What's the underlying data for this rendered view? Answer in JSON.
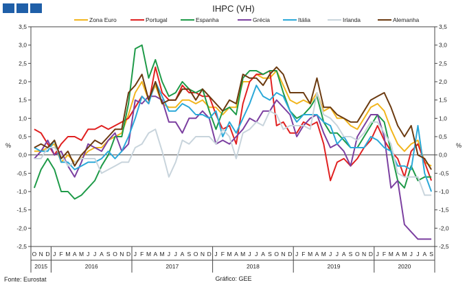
{
  "source_text": "Fonte: Eurostat",
  "credit_text": "Gráfico: GEE",
  "chart_data": {
    "type": "line",
    "title": "IHPC (VH)",
    "ylabel_left": "%",
    "ylabel_right": "%",
    "ylim": [
      -2.5,
      3.5
    ],
    "yticks": [
      "-2,5",
      "-2,0",
      "-1,5",
      "-1,0",
      "-0,5",
      "0,0",
      "0,5",
      "1,0",
      "1,5",
      "2,0",
      "2,5",
      "3,0",
      "3,5"
    ],
    "yvalues": [
      -2.5,
      -2.0,
      -1.5,
      -1.0,
      -0.5,
      0.0,
      0.5,
      1.0,
      1.5,
      2.0,
      2.5,
      3.0,
      3.5
    ],
    "month_labels": [
      "O",
      "N",
      "D",
      "J",
      "F",
      "M",
      "A",
      "M",
      "J",
      "J",
      "A",
      "S",
      "O",
      "N",
      "D",
      "J",
      "F",
      "M",
      "A",
      "M",
      "J",
      "J",
      "A",
      "S",
      "O",
      "N",
      "D",
      "J",
      "F",
      "M",
      "A",
      "M",
      "J",
      "J",
      "A",
      "S",
      "O",
      "N",
      "D",
      "J",
      "F",
      "M",
      "A",
      "M",
      "J",
      "J",
      "A",
      "S",
      "O",
      "N",
      "D",
      "J",
      "F",
      "M",
      "A",
      "M",
      "J",
      "J",
      "A",
      "S"
    ],
    "years": [
      {
        "label": "2015",
        "start": 0,
        "end": 2
      },
      {
        "label": "2016",
        "start": 3,
        "end": 14
      },
      {
        "label": "2017",
        "start": 15,
        "end": 26
      },
      {
        "label": "2018",
        "start": 27,
        "end": 38
      },
      {
        "label": "2019",
        "start": 39,
        "end": 50
      },
      {
        "label": "2020",
        "start": 51,
        "end": 59
      }
    ],
    "legend_position": "top",
    "series": [
      {
        "name": "Zona Euro",
        "color": "#f2b51c",
        "values": [
          0.1,
          0.1,
          0.2,
          0.3,
          -0.2,
          0.0,
          -0.2,
          -0.1,
          0.1,
          0.2,
          0.2,
          0.4,
          0.5,
          0.6,
          1.1,
          1.7,
          2.0,
          1.5,
          1.9,
          1.4,
          1.3,
          1.3,
          1.5,
          1.5,
          1.4,
          1.5,
          1.3,
          1.3,
          1.1,
          1.3,
          1.3,
          2.0,
          2.0,
          2.2,
          2.1,
          2.1,
          2.3,
          1.9,
          1.5,
          1.4,
          1.5,
          1.4,
          1.7,
          1.2,
          1.3,
          1.0,
          1.0,
          0.8,
          0.7,
          1.0,
          1.3,
          1.4,
          1.2,
          0.7,
          0.3,
          0.1,
          0.3,
          0.4,
          -0.2,
          -0.3
        ]
      },
      {
        "name": "Portugal",
        "color": "#e02020",
        "values": [
          0.7,
          0.6,
          0.3,
          0.0,
          0.3,
          0.5,
          0.5,
          0.4,
          0.7,
          0.7,
          0.8,
          0.7,
          0.8,
          0.9,
          1.0,
          1.3,
          1.6,
          1.4,
          2.4,
          1.7,
          1.5,
          1.5,
          1.9,
          1.7,
          1.7,
          1.6,
          1.6,
          1.1,
          0.7,
          0.8,
          0.3,
          1.4,
          2.0,
          2.2,
          2.2,
          2.3,
          0.8,
          0.9,
          0.6,
          0.6,
          0.9,
          0.8,
          0.9,
          0.3,
          -0.7,
          -0.2,
          -0.1,
          -0.3,
          -0.1,
          0.2,
          0.4,
          0.8,
          0.4,
          0.1,
          -0.1,
          -0.6,
          0.1,
          0.3,
          -0.2,
          -0.7
        ]
      },
      {
        "name": "Espanha",
        "color": "#1e9a48",
        "values": [
          -0.9,
          -0.4,
          -0.1,
          -0.4,
          -1.0,
          -1.0,
          -1.2,
          -1.1,
          -0.9,
          -0.7,
          -0.3,
          0.0,
          0.5,
          0.5,
          1.4,
          2.9,
          3.0,
          2.1,
          2.6,
          2.0,
          1.6,
          1.7,
          2.0,
          1.8,
          1.7,
          1.8,
          1.2,
          0.7,
          1.2,
          1.3,
          1.1,
          2.1,
          2.3,
          2.3,
          2.2,
          2.3,
          2.3,
          1.7,
          1.2,
          1.0,
          1.1,
          1.3,
          1.6,
          0.9,
          0.6,
          0.6,
          0.4,
          0.2,
          0.2,
          0.5,
          0.8,
          1.1,
          0.9,
          0.1,
          -0.7,
          -0.9,
          -0.3,
          -0.7,
          -0.6,
          -0.6
        ]
      },
      {
        "name": "Grécia",
        "color": "#7b3fa0",
        "values": [
          -0.1,
          0.1,
          0.4,
          0.0,
          0.1,
          -0.3,
          -0.6,
          -0.2,
          0.3,
          0.2,
          0.1,
          0.4,
          0.6,
          0.1,
          0.3,
          1.5,
          1.4,
          1.6,
          1.6,
          1.5,
          0.9,
          0.9,
          0.6,
          1.0,
          1.0,
          1.2,
          1.0,
          0.3,
          0.4,
          0.3,
          0.5,
          0.7,
          1.0,
          0.9,
          1.2,
          1.2,
          1.5,
          1.3,
          1.1,
          0.5,
          0.8,
          1.0,
          1.1,
          0.6,
          0.2,
          0.3,
          0.1,
          -0.3,
          0.5,
          0.8,
          1.1,
          1.1,
          0.5,
          -0.9,
          -0.7,
          -1.9,
          -2.1,
          -2.3,
          -2.3,
          -2.3
        ]
      },
      {
        "name": "Itália",
        "color": "#2aa8d8",
        "values": [
          0.2,
          0.1,
          0.1,
          0.4,
          -0.2,
          -0.2,
          -0.4,
          -0.3,
          -0.2,
          -0.2,
          -0.1,
          0.1,
          -0.1,
          0.1,
          0.5,
          1.0,
          1.6,
          1.4,
          2.0,
          1.6,
          1.2,
          1.2,
          1.4,
          1.3,
          1.1,
          1.1,
          1.0,
          1.2,
          0.5,
          0.9,
          0.6,
          1.0,
          1.4,
          1.9,
          1.6,
          1.5,
          1.7,
          1.6,
          1.2,
          0.9,
          1.1,
          1.1,
          1.1,
          0.9,
          0.8,
          0.3,
          0.5,
          0.2,
          0.2,
          0.2,
          0.5,
          0.4,
          0.2,
          0.1,
          -0.3,
          -0.3,
          -0.4,
          0.8,
          -0.5,
          -1.0
        ]
      },
      {
        "name": "Irlanda",
        "color": "#c8d4dc",
        "values": [
          -0.1,
          -0.1,
          0.2,
          0.2,
          0.0,
          -0.3,
          -0.2,
          -0.1,
          -0.1,
          -0.1,
          -0.5,
          -0.4,
          -0.3,
          -0.2,
          -0.2,
          0.2,
          0.3,
          0.6,
          0.7,
          0.1,
          -0.6,
          -0.2,
          0.4,
          0.3,
          0.5,
          0.5,
          0.5,
          0.3,
          0.7,
          0.5,
          -0.1,
          0.6,
          0.7,
          0.9,
          0.8,
          1.2,
          1.1,
          0.7,
          0.8,
          0.8,
          0.8,
          0.7,
          1.7,
          1.1,
          1.0,
          0.8,
          0.5,
          0.5,
          0.4,
          0.6,
          0.9,
          0.9,
          0.6,
          0.3,
          -0.5,
          -0.6,
          -0.6,
          -0.6,
          -1.1,
          -1.1
        ]
      },
      {
        "name": "Alemanha",
        "color": "#6b3a10",
        "values": [
          0.2,
          0.3,
          0.2,
          0.4,
          -0.1,
          0.1,
          -0.3,
          0.0,
          0.2,
          0.4,
          0.3,
          0.5,
          0.7,
          0.7,
          1.7,
          1.9,
          2.2,
          1.5,
          2.0,
          1.4,
          1.5,
          1.5,
          1.8,
          1.8,
          1.5,
          1.8,
          1.6,
          1.4,
          1.2,
          1.5,
          1.4,
          2.2,
          2.1,
          2.1,
          1.9,
          2.2,
          2.4,
          2.2,
          1.7,
          1.7,
          1.7,
          1.4,
          2.1,
          1.3,
          1.3,
          1.1,
          1.0,
          0.9,
          0.9,
          1.2,
          1.5,
          1.6,
          1.7,
          1.3,
          0.8,
          0.5,
          0.8,
          0.0,
          -0.1,
          -0.4
        ]
      }
    ]
  }
}
